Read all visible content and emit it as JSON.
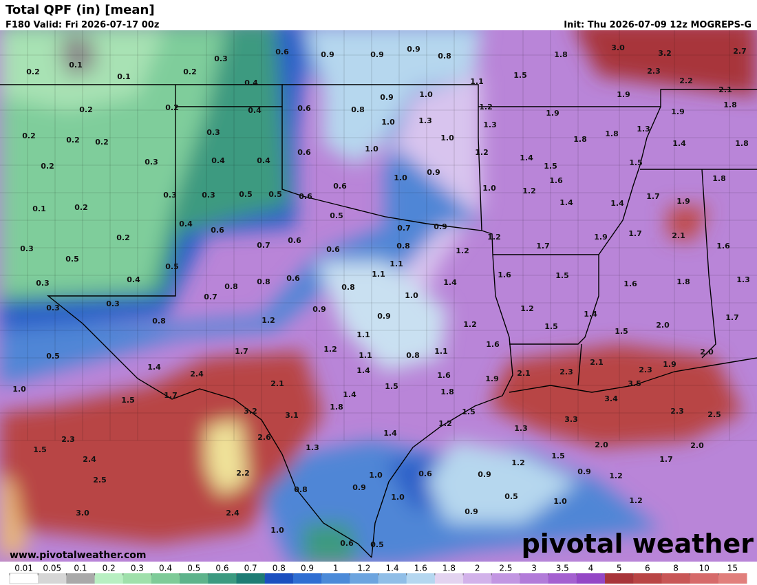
{
  "header": {
    "title": "Total QPF (in) [mean]",
    "valid": "F180 Valid: Fri 2026-07-17 00z",
    "init": "Init: Thu 2026-07-09 12z MOGREPS-G"
  },
  "map": {
    "labels": [
      0.1,
      0.2,
      0.1,
      0.2,
      0.3,
      0.6,
      0.9,
      0.9,
      0.9,
      0.8,
      1.8,
      {
        "value": 3,
        "label": "3.0"
      },
      3.2,
      2.7,
      2.3,
      2.2,
      2.1,
      1.5,
      1.1,
      0.4,
      0.2,
      0.2,
      0.4,
      0.6,
      0.8,
      0.9,
      {
        "value": 1,
        "label": "1.0"
      },
      1.2,
      1.9,
      1.9,
      1.9,
      1.8,
      0.2,
      0.2,
      0.2,
      0.3,
      {
        "value": 1,
        "label": "1.0"
      },
      1.3,
      1.3,
      {
        "value": 1,
        "label": "1.0"
      },
      1.8,
      1.8,
      1.3,
      1.4,
      1.8,
      0.2,
      0.3,
      0.4,
      0.4,
      0.6,
      {
        "value": 1,
        "label": "1.0"
      },
      1.2,
      1.4,
      1.5,
      1.5,
      {
        "value": 1,
        "label": "1.0"
      },
      0.9,
      {
        "value": 1,
        "label": "1.0"
      },
      1.2,
      1.6,
      0.6,
      1.8,
      0.1,
      0.2,
      0.3,
      0.3,
      0.5,
      0.5,
      0.6,
      1.4,
      1.4,
      1.7,
      1.9,
      0.4,
      0.6,
      0.5,
      0.7,
      0.9,
      1.2,
      0.2,
      1.9,
      1.7,
      2.1,
      0.3,
      0.5,
      0.7,
      0.6,
      0.6,
      0.8,
      1.2,
      1.7,
      1.6,
      0.5,
      1.1,
      0.3,
      0.4,
      0.8,
      0.8,
      0.6,
      1.1,
      0.8,
      1.4,
      1.6,
      1.5,
      1.6,
      1.8,
      1.3,
      0.3,
      0.3,
      0.7,
      {
        "value": 1,
        "label": "1.0"
      },
      0.9,
      0.9,
      1.2,
      1.4,
      1.7,
      0.8,
      1.2,
      1.2,
      1.5,
      {
        "value": 2,
        "label": "2.0"
      },
      1.5,
      0.5,
      1.7,
      1.1,
      1.2,
      1.1,
      0.8,
      1.1,
      1.6,
      {
        "value": 2,
        "label": "2.0"
      },
      1.4,
      2.4,
      1.4,
      1.6,
      2.1,
      2.3,
      2.1,
      1.9,
      2.3,
      1.9,
      {
        "value": 1,
        "label": "1.0"
      },
      2.1,
      1.7,
      1.5,
      1.5,
      1.4,
      1.8,
      3.5,
      3.4,
      3.2,
      3.1,
      1.8,
      1.5,
      3.3,
      2.3,
      2.5,
      2.3,
      2.6,
      1.2,
      1.3,
      1.4,
      1.5,
      1.3,
      {
        "value": 2,
        "label": "2.0"
      },
      {
        "value": 2,
        "label": "2.0"
      },
      1.5,
      2.4,
      1.2,
      1.7,
      2.5,
      2.2,
      {
        "value": 1,
        "label": "1.0"
      },
      0.6,
      0.9,
      0.9,
      1.2,
      0.8,
      0.9,
      {
        "value": 1,
        "label": "1.0"
      },
      0.5,
      {
        "value": 1,
        "label": "1.0"
      },
      1.2,
      {
        "value": 3,
        "label": "3.0"
      },
      2.4,
      0.9,
      {
        "value": 1,
        "label": "1.0"
      },
      0.6,
      0.5
    ]
  },
  "legend": {
    "ticks": [
      0.01,
      0.05,
      0.1,
      0.2,
      0.3,
      0.4,
      0.5,
      0.6,
      0.7,
      0.8,
      0.9,
      1,
      1.2,
      1.4,
      1.6,
      1.8,
      2,
      2.5,
      3,
      3.5,
      4,
      5,
      6,
      8,
      10,
      15
    ],
    "colors": [
      "#ffffff",
      "#d6d6d6",
      "#a9a9a9",
      "#b8efc2",
      "#9fe0ab",
      "#7ecb98",
      "#5db38b",
      "#3b9a80",
      "#1d7c74",
      "#1b4fbf",
      "#2f6ed2",
      "#4b8ad8",
      "#6ca4df",
      "#90bee7",
      "#b5d7f0",
      "#e3d3f0",
      "#d2b2ea",
      "#c296e2",
      "#b27bd9",
      "#a460d0",
      "#9447c6",
      "#a8353a",
      "#b94545",
      "#c85656",
      "#d66a6a",
      "#e17f7c"
    ]
  },
  "footer": {
    "site": "www.pivotalweather.com",
    "logo": "pivotal weather"
  }
}
